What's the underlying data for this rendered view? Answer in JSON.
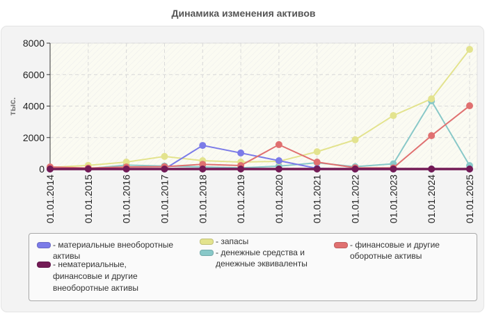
{
  "header": {
    "title": "Динамика изменения активов"
  },
  "chart_data": {
    "type": "line",
    "title": "Динамика изменения активов",
    "xlabel": "",
    "ylabel": "тыс.",
    "ylim": [
      0,
      8000
    ],
    "yticks": [
      0,
      2000,
      4000,
      6000,
      8000
    ],
    "grid": true,
    "legend_position": "bottom",
    "categories": [
      "01.01.2014",
      "01.01.2015",
      "01.01.2016",
      "01.01.2017",
      "01.01.2018",
      "01.01.2019",
      "01.01.2020",
      "01.01.2021",
      "01.01.2022",
      "01.01.2023",
      "01.01.2024",
      "01.01.2025"
    ],
    "series": [
      {
        "name": "материальные внеоборотные активы",
        "color": "#7b7be8",
        "values": [
          0,
          0,
          0,
          0,
          1500,
          1020,
          530,
          40,
          0,
          0,
          0,
          0
        ]
      },
      {
        "name": "нематериальные, финансовые и другие внеоборотные активы",
        "color": "#731a55",
        "values": [
          0,
          0,
          0,
          0,
          0,
          0,
          0,
          0,
          0,
          0,
          0,
          0
        ]
      },
      {
        "name": "запасы",
        "color": "#e3e38e",
        "values": [
          100,
          230,
          440,
          800,
          530,
          440,
          490,
          1100,
          1860,
          3400,
          4460,
          7600
        ]
      },
      {
        "name": "денежные средства и денежные эквиваленты",
        "color": "#88c8c8",
        "values": [
          20,
          30,
          250,
          190,
          130,
          80,
          180,
          400,
          150,
          330,
          4330,
          220
        ]
      },
      {
        "name": "финансовые и другие оборотные активы",
        "color": "#e07070",
        "values": [
          130,
          60,
          130,
          150,
          300,
          220,
          1550,
          440,
          80,
          70,
          2120,
          4020
        ]
      }
    ]
  },
  "legend": {
    "items": [
      {
        "label": "- материальные внеоборотные активы",
        "color": "#7b7be8"
      },
      {
        "label": "- нематериальные, финансовые и другие внеоборотные активы",
        "color": "#731a55"
      },
      {
        "label": "- запасы",
        "color": "#e3e38e"
      },
      {
        "label": "- денежные средства и денежные эквиваленты",
        "color": "#88c8c8"
      },
      {
        "label": "- финансовые и другие оборотные активы",
        "color": "#e07070"
      }
    ]
  }
}
